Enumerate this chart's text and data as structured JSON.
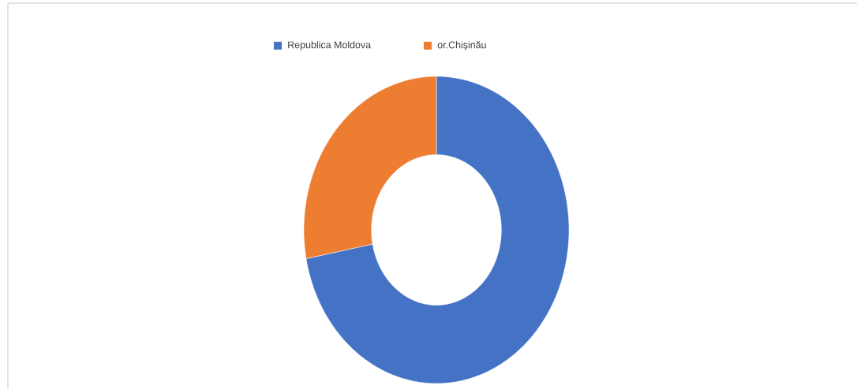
{
  "chart_data": {
    "type": "donut",
    "categories": [
      "Republica Moldova",
      "or.Chișinău"
    ],
    "values": [
      72,
      28
    ],
    "colors": [
      "#4472c4",
      "#ed7d31"
    ],
    "legend": "top"
  }
}
